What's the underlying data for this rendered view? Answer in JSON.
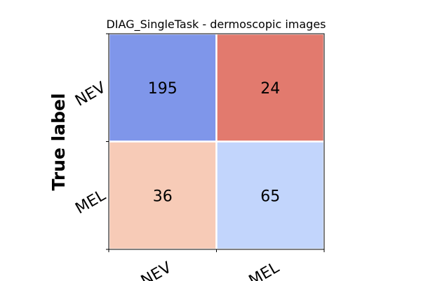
{
  "chart_data": {
    "type": "heatmap",
    "title": "DIAG_SingleTask - dermoscopic images",
    "ylabel": "True label",
    "xlabel": "",
    "row_labels": [
      "NEV",
      "MEL"
    ],
    "col_labels": [
      "NEV",
      "MEL"
    ],
    "values": [
      [
        195,
        24
      ],
      [
        36,
        65
      ]
    ],
    "cell_colors": [
      [
        "#7f96ea",
        "#e27a6e"
      ],
      [
        "#f7cbb7",
        "#c2d5fc"
      ]
    ]
  }
}
